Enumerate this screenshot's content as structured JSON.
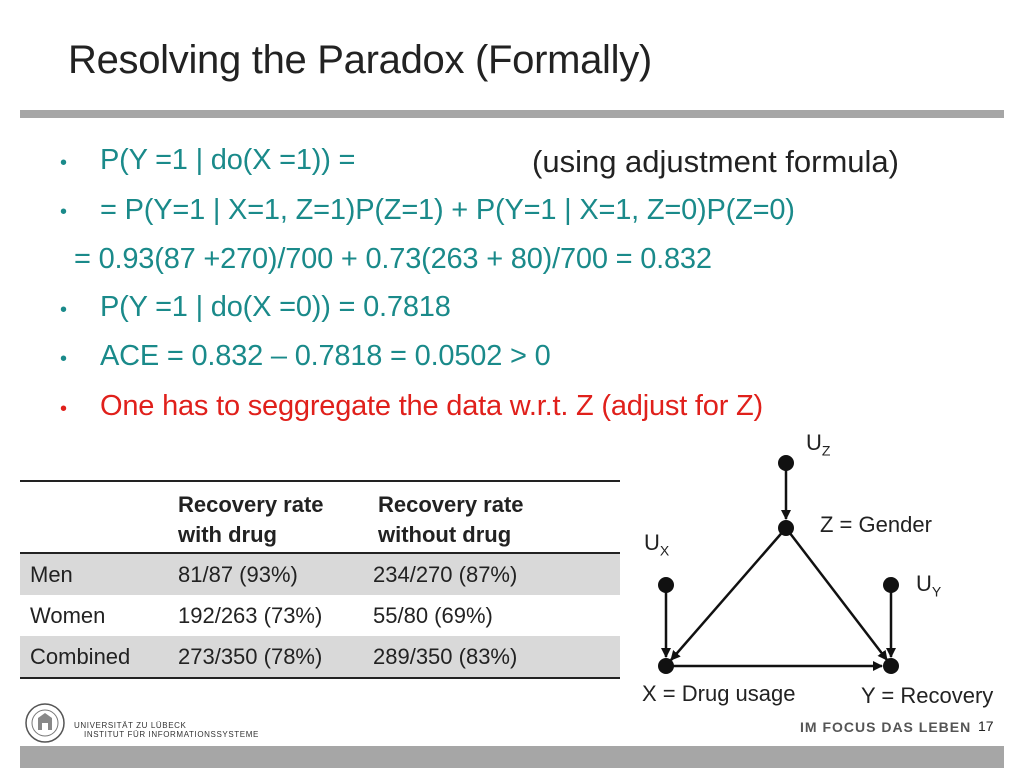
{
  "title": "Resolving the Paradox (Formally)",
  "bullets": [
    {
      "text": "P(Y =1 | do(X =1)) =",
      "bullet": true,
      "color": "#1a8a8a"
    },
    {
      "text": "= P(Y=1 | X=1, Z=1)P(Z=1) + P(Y=1 | X=1, Z=0)P(Z=0)",
      "bullet": true,
      "color": "#1a8a8a"
    },
    {
      "text": "= 0.93(87 +270)/700 + 0.73(263 + 80)/700 = 0.832",
      "bullet": false,
      "color": "#1a8a8a"
    },
    {
      "text": "P(Y =1 | do(X =0)) = 0.7818",
      "bullet": true,
      "color": "#1a8a8a"
    },
    {
      "text": "ACE = 0.832 – 0.7818 = 0.0502 > 0",
      "bullet": true,
      "color": "#1a8a8a"
    },
    {
      "text": "One has to seggregate the data w.r.t. Z  (adjust for Z)",
      "bullet": true,
      "color": "#e0201b"
    }
  ],
  "aside": "(using adjustment formula)",
  "table": {
    "headers": [
      "",
      "Recovery rate with drug",
      "Recovery rate without drug"
    ],
    "header_lines": [
      [
        "Recovery rate",
        "with drug"
      ],
      [
        "Recovery rate",
        "without drug"
      ]
    ],
    "rows": [
      [
        "Men",
        "81/87 (93%)",
        "234/270 (87%)"
      ],
      [
        "Women",
        "192/263 (73%)",
        "55/80 (69%)"
      ],
      [
        "Combined",
        "273/350 (78%)",
        "289/350 (83%)"
      ]
    ]
  },
  "diagram": {
    "uz": {
      "main": "U",
      "sub": "Z"
    },
    "ux": {
      "main": "U",
      "sub": "X"
    },
    "uy": {
      "main": "U",
      "sub": "Y"
    },
    "z_label": "Z = Gender",
    "x_label": "X = Drug usage",
    "y_label": "Y = Recovery"
  },
  "footer": {
    "university": "UNIVERSITÄT ZU LÜBECK",
    "institute": "INSTITUT FÜR INFORMATIONSSYSTEME",
    "slogan": "IM FOCUS DAS LEBEN",
    "page": "17"
  }
}
